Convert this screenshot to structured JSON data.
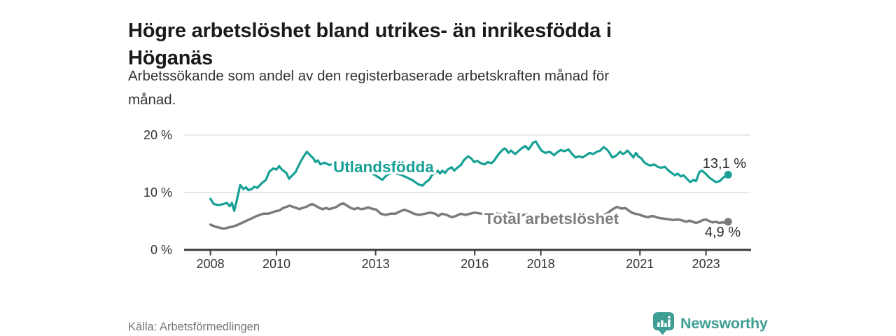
{
  "header": {
    "title": "Högre arbetslöshet bland utrikes- än inrikesfödda i Höganäs",
    "title_lines": [
      "Högre arbetslöshet bland utrikes- än inrikesfödda i",
      "Höganäs"
    ],
    "subtitle": "Arbetssökande som andel av den registerbaserade arbetskraften månad för månad.",
    "subtitle_lines": [
      "Arbetssökande som andel av den registerbaserade arbetskraften månad för",
      "månad."
    ]
  },
  "footer": {
    "source": "Källa: Arbetsförmedlingen",
    "brand": "Newsworthy"
  },
  "icons": {
    "brand_logo": "bar-chart-speech-bubble-icon"
  },
  "colors": {
    "foreign_born_line": "#17a095",
    "total_line": "#7b7b7b",
    "axis": "#3d3d3d",
    "grid": "#dcdcdc",
    "brand_teal": "#3e9e94",
    "text_dark": "#1a1a1a",
    "text_gray": "#333333"
  },
  "chart_data": {
    "type": "line",
    "title": "Högre arbetslöshet bland utrikes- än inrikesfödda i Höganäs",
    "subtitle": "Arbetssökande som andel av den registerbaserade arbetskraften månad för månad.",
    "unit": "%",
    "xlim": [
      2007.2,
      2024.35
    ],
    "ylim": [
      0,
      20
    ],
    "grid": "horizontal-only",
    "x_ticks": [
      {
        "year": 2008,
        "label": "2008"
      },
      {
        "year": 2010,
        "label": "2010"
      },
      {
        "year": 2013,
        "label": "2013"
      },
      {
        "year": 2016,
        "label": "2016"
      },
      {
        "year": 2018,
        "label": "2018"
      },
      {
        "year": 2021,
        "label": "2021"
      },
      {
        "year": 2023,
        "label": "2023"
      }
    ],
    "y_ticks": [
      {
        "value": 0,
        "label": "0 %"
      },
      {
        "value": 10,
        "label": "10 %"
      },
      {
        "value": 20,
        "label": "20 %"
      }
    ],
    "series": [
      {
        "name": "Utlandsfödda",
        "color": "#17a095",
        "width": 3.2,
        "end_label": "13,1 %",
        "end_value": 13.1,
        "points": [
          [
            2008.0,
            8.9
          ],
          [
            2008.1,
            8.0
          ],
          [
            2008.25,
            7.8
          ],
          [
            2008.4,
            8.0
          ],
          [
            2008.5,
            8.2
          ],
          [
            2008.58,
            7.6
          ],
          [
            2008.65,
            8.2
          ],
          [
            2008.72,
            6.8
          ],
          [
            2008.8,
            8.7
          ],
          [
            2008.9,
            11.3
          ],
          [
            2009.0,
            10.6
          ],
          [
            2009.08,
            10.9
          ],
          [
            2009.15,
            10.4
          ],
          [
            2009.25,
            10.6
          ],
          [
            2009.33,
            11.0
          ],
          [
            2009.42,
            10.8
          ],
          [
            2009.55,
            11.6
          ],
          [
            2009.68,
            12.2
          ],
          [
            2009.78,
            13.6
          ],
          [
            2009.9,
            14.2
          ],
          [
            2010.0,
            14.0
          ],
          [
            2010.08,
            14.6
          ],
          [
            2010.16,
            14.0
          ],
          [
            2010.3,
            13.4
          ],
          [
            2010.38,
            12.4
          ],
          [
            2010.48,
            13.0
          ],
          [
            2010.58,
            13.6
          ],
          [
            2010.68,
            14.8
          ],
          [
            2010.8,
            16.1
          ],
          [
            2010.92,
            17.1
          ],
          [
            2011.05,
            16.3
          ],
          [
            2011.12,
            15.9
          ],
          [
            2011.18,
            15.3
          ],
          [
            2011.25,
            15.6
          ],
          [
            2011.33,
            14.9
          ],
          [
            2011.45,
            15.2
          ],
          [
            2011.6,
            14.8
          ],
          [
            2011.75,
            15.0
          ],
          [
            2011.9,
            14.5
          ],
          [
            2012.05,
            14.2
          ],
          [
            2012.2,
            13.9
          ],
          [
            2012.35,
            14.1
          ],
          [
            2012.5,
            13.7
          ],
          [
            2012.65,
            13.5
          ],
          [
            2012.78,
            13.6
          ],
          [
            2012.88,
            13.4
          ],
          [
            2013.1,
            12.6
          ],
          [
            2013.2,
            12.2
          ],
          [
            2013.3,
            12.8
          ],
          [
            2013.42,
            13.3
          ],
          [
            2013.6,
            13.4
          ],
          [
            2013.8,
            13.0
          ],
          [
            2013.95,
            12.6
          ],
          [
            2014.1,
            12.2
          ],
          [
            2014.2,
            11.8
          ],
          [
            2014.3,
            11.4
          ],
          [
            2014.42,
            11.2
          ],
          [
            2014.52,
            11.8
          ],
          [
            2014.62,
            12.2
          ],
          [
            2014.7,
            13.0
          ],
          [
            2014.8,
            13.4
          ],
          [
            2014.88,
            13.8
          ],
          [
            2014.95,
            13.3
          ],
          [
            2015.02,
            13.8
          ],
          [
            2015.1,
            13.4
          ],
          [
            2015.18,
            14.0
          ],
          [
            2015.3,
            14.4
          ],
          [
            2015.38,
            13.8
          ],
          [
            2015.45,
            14.2
          ],
          [
            2015.58,
            14.8
          ],
          [
            2015.68,
            15.7
          ],
          [
            2015.8,
            16.3
          ],
          [
            2015.9,
            15.9
          ],
          [
            2015.98,
            15.3
          ],
          [
            2016.08,
            15.5
          ],
          [
            2016.18,
            15.1
          ],
          [
            2016.3,
            14.9
          ],
          [
            2016.4,
            15.3
          ],
          [
            2016.5,
            15.1
          ],
          [
            2016.58,
            15.5
          ],
          [
            2016.7,
            16.5
          ],
          [
            2016.82,
            17.3
          ],
          [
            2016.9,
            17.7
          ],
          [
            2016.95,
            17.5
          ],
          [
            2017.02,
            16.9
          ],
          [
            2017.1,
            17.3
          ],
          [
            2017.22,
            16.7
          ],
          [
            2017.3,
            17.1
          ],
          [
            2017.42,
            17.7
          ],
          [
            2017.53,
            18.1
          ],
          [
            2017.63,
            17.5
          ],
          [
            2017.77,
            18.7
          ],
          [
            2017.85,
            18.9
          ],
          [
            2017.95,
            17.9
          ],
          [
            2018.02,
            17.3
          ],
          [
            2018.13,
            16.9
          ],
          [
            2018.27,
            17.1
          ],
          [
            2018.4,
            16.5
          ],
          [
            2018.5,
            17.0
          ],
          [
            2018.6,
            17.4
          ],
          [
            2018.72,
            17.2
          ],
          [
            2018.84,
            17.5
          ],
          [
            2018.95,
            16.7
          ],
          [
            2019.05,
            16.1
          ],
          [
            2019.16,
            16.3
          ],
          [
            2019.26,
            16.1
          ],
          [
            2019.37,
            16.5
          ],
          [
            2019.48,
            16.9
          ],
          [
            2019.58,
            16.7
          ],
          [
            2019.7,
            17.1
          ],
          [
            2019.8,
            17.3
          ],
          [
            2019.9,
            17.9
          ],
          [
            2020.0,
            17.5
          ],
          [
            2020.08,
            16.9
          ],
          [
            2020.16,
            16.1
          ],
          [
            2020.25,
            16.3
          ],
          [
            2020.33,
            16.7
          ],
          [
            2020.4,
            17.1
          ],
          [
            2020.48,
            16.7
          ],
          [
            2020.55,
            16.9
          ],
          [
            2020.62,
            17.3
          ],
          [
            2020.72,
            16.7
          ],
          [
            2020.8,
            16.1
          ],
          [
            2020.88,
            16.9
          ],
          [
            2020.95,
            16.3
          ],
          [
            2021.05,
            15.9
          ],
          [
            2021.12,
            15.3
          ],
          [
            2021.22,
            14.9
          ],
          [
            2021.32,
            14.7
          ],
          [
            2021.43,
            14.9
          ],
          [
            2021.53,
            14.5
          ],
          [
            2021.64,
            14.3
          ],
          [
            2021.75,
            14.5
          ],
          [
            2021.85,
            13.9
          ],
          [
            2021.96,
            13.4
          ],
          [
            2022.06,
            13.0
          ],
          [
            2022.14,
            13.3
          ],
          [
            2022.24,
            12.8
          ],
          [
            2022.32,
            13.0
          ],
          [
            2022.42,
            12.4
          ],
          [
            2022.52,
            11.8
          ],
          [
            2022.62,
            12.2
          ],
          [
            2022.7,
            12.0
          ],
          [
            2022.8,
            13.6
          ],
          [
            2022.88,
            13.8
          ],
          [
            2022.98,
            13.3
          ],
          [
            2023.1,
            12.6
          ],
          [
            2023.2,
            12.2
          ],
          [
            2023.3,
            11.8
          ],
          [
            2023.42,
            12.0
          ],
          [
            2023.52,
            12.6
          ],
          [
            2023.67,
            13.1
          ]
        ]
      },
      {
        "name": "Total arbetslöshet",
        "color": "#7b7b7b",
        "width": 3.5,
        "end_label": "4,9 %",
        "end_value": 4.9,
        "points": [
          [
            2008.0,
            4.4
          ],
          [
            2008.12,
            4.1
          ],
          [
            2008.25,
            3.9
          ],
          [
            2008.4,
            3.7
          ],
          [
            2008.55,
            3.9
          ],
          [
            2008.7,
            4.1
          ],
          [
            2008.8,
            4.3
          ],
          [
            2008.95,
            4.7
          ],
          [
            2009.1,
            5.1
          ],
          [
            2009.25,
            5.5
          ],
          [
            2009.4,
            5.9
          ],
          [
            2009.5,
            6.1
          ],
          [
            2009.6,
            6.3
          ],
          [
            2009.75,
            6.3
          ],
          [
            2009.85,
            6.5
          ],
          [
            2009.95,
            6.7
          ],
          [
            2010.1,
            6.9
          ],
          [
            2010.2,
            7.3
          ],
          [
            2010.3,
            7.5
          ],
          [
            2010.4,
            7.7
          ],
          [
            2010.5,
            7.5
          ],
          [
            2010.6,
            7.3
          ],
          [
            2010.7,
            7.1
          ],
          [
            2010.78,
            7.3
          ],
          [
            2010.9,
            7.5
          ],
          [
            2011.0,
            7.8
          ],
          [
            2011.08,
            8.0
          ],
          [
            2011.18,
            7.7
          ],
          [
            2011.3,
            7.3
          ],
          [
            2011.4,
            7.1
          ],
          [
            2011.5,
            7.3
          ],
          [
            2011.6,
            7.1
          ],
          [
            2011.72,
            7.3
          ],
          [
            2011.82,
            7.5
          ],
          [
            2011.92,
            7.9
          ],
          [
            2012.03,
            8.1
          ],
          [
            2012.14,
            7.7
          ],
          [
            2012.25,
            7.3
          ],
          [
            2012.35,
            7.1
          ],
          [
            2012.46,
            7.3
          ],
          [
            2012.56,
            7.1
          ],
          [
            2012.67,
            7.2
          ],
          [
            2012.77,
            7.4
          ],
          [
            2012.88,
            7.2
          ],
          [
            2013.02,
            7.0
          ],
          [
            2013.16,
            6.3
          ],
          [
            2013.3,
            6.1
          ],
          [
            2013.45,
            6.3
          ],
          [
            2013.6,
            6.3
          ],
          [
            2013.73,
            6.7
          ],
          [
            2013.87,
            7.0
          ],
          [
            2014.02,
            6.7
          ],
          [
            2014.16,
            6.3
          ],
          [
            2014.3,
            6.1
          ],
          [
            2014.5,
            6.3
          ],
          [
            2014.65,
            6.5
          ],
          [
            2014.8,
            6.3
          ],
          [
            2014.9,
            5.9
          ],
          [
            2015.0,
            6.3
          ],
          [
            2015.15,
            6.1
          ],
          [
            2015.3,
            5.7
          ],
          [
            2015.43,
            5.9
          ],
          [
            2015.58,
            6.3
          ],
          [
            2015.72,
            6.1
          ],
          [
            2015.86,
            6.3
          ],
          [
            2016.0,
            6.5
          ],
          [
            2016.2,
            6.3
          ],
          [
            2016.4,
            6.1
          ],
          [
            2016.6,
            6.4
          ],
          [
            2016.8,
            6.2
          ],
          [
            2017.0,
            6.5
          ],
          [
            2017.2,
            6.2
          ],
          [
            2017.4,
            6.0
          ],
          [
            2017.6,
            6.2
          ],
          [
            2017.8,
            6.0
          ],
          [
            2018.0,
            6.2
          ],
          [
            2018.2,
            5.9
          ],
          [
            2018.4,
            5.7
          ],
          [
            2018.6,
            5.9
          ],
          [
            2018.8,
            5.7
          ],
          [
            2019.0,
            5.9
          ],
          [
            2019.2,
            5.6
          ],
          [
            2019.4,
            5.8
          ],
          [
            2019.6,
            5.7
          ],
          [
            2019.8,
            5.9
          ],
          [
            2020.0,
            6.3
          ],
          [
            2020.15,
            7.0
          ],
          [
            2020.3,
            7.5
          ],
          [
            2020.45,
            7.2
          ],
          [
            2020.55,
            7.3
          ],
          [
            2020.65,
            6.9
          ],
          [
            2020.75,
            6.5
          ],
          [
            2020.85,
            6.3
          ],
          [
            2020.95,
            6.2
          ],
          [
            2021.05,
            6.0
          ],
          [
            2021.15,
            5.8
          ],
          [
            2021.25,
            5.7
          ],
          [
            2021.35,
            5.9
          ],
          [
            2021.45,
            5.8
          ],
          [
            2021.55,
            5.6
          ],
          [
            2021.65,
            5.5
          ],
          [
            2021.78,
            5.4
          ],
          [
            2021.9,
            5.3
          ],
          [
            2022.0,
            5.2
          ],
          [
            2022.15,
            5.3
          ],
          [
            2022.3,
            5.1
          ],
          [
            2022.4,
            4.9
          ],
          [
            2022.5,
            5.1
          ],
          [
            2022.6,
            4.9
          ],
          [
            2022.7,
            4.7
          ],
          [
            2022.8,
            4.9
          ],
          [
            2022.9,
            5.2
          ],
          [
            2023.0,
            5.3
          ],
          [
            2023.1,
            5.0
          ],
          [
            2023.2,
            4.8
          ],
          [
            2023.3,
            4.9
          ],
          [
            2023.4,
            4.7
          ],
          [
            2023.5,
            4.8
          ],
          [
            2023.6,
            4.7
          ],
          [
            2023.67,
            4.9
          ]
        ]
      }
    ]
  }
}
